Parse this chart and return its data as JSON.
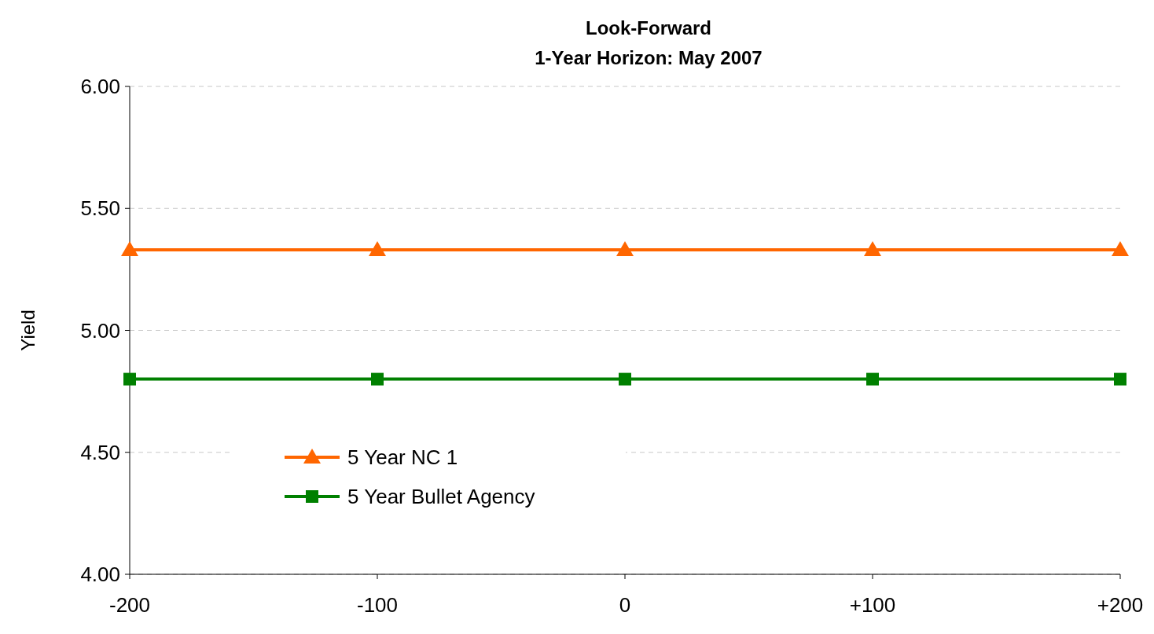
{
  "chart_data": {
    "type": "line",
    "title": "Look-Forward\n1-Year Horizon: May 2007",
    "ylabel": "Yield",
    "categories": [
      "-200",
      "-100",
      "0",
      "+100",
      "+200"
    ],
    "series": [
      {
        "name": "5 Year NC 1",
        "color": "#ff6600",
        "values": [
          5.33,
          5.33,
          5.33,
          5.33,
          5.33
        ],
        "marker": "triangle"
      },
      {
        "name": "5 Year Bullet Agency",
        "color": "#008000",
        "values": [
          4.8,
          4.8,
          4.8,
          4.8,
          4.8
        ],
        "marker": "square"
      }
    ],
    "ylim": [
      4,
      6
    ],
    "yticks": [
      {
        "value": 4,
        "label": "4.00"
      },
      {
        "value": 4.5,
        "label": "4.50"
      },
      {
        "value": 5,
        "label": "5.00"
      },
      {
        "value": 5.5,
        "label": "5.50"
      },
      {
        "value": 6,
        "label": "6.00"
      }
    ],
    "grid": "y",
    "legend": "bottom left",
    "line_style": "solid"
  }
}
